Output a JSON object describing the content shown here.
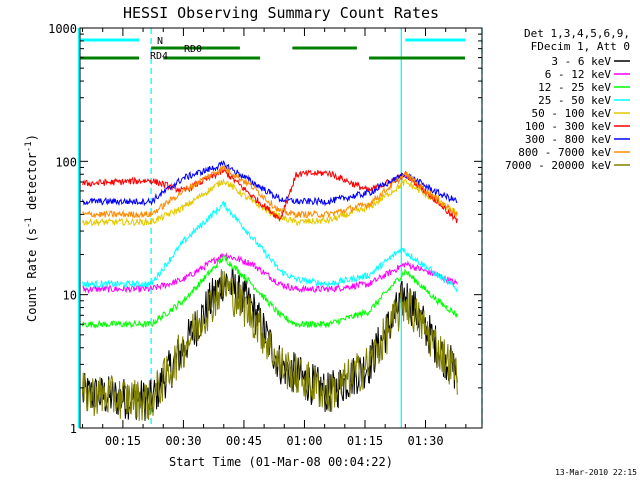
{
  "chart_data": {
    "type": "line",
    "title": "HESSI Observing Summary Count Rates",
    "xlabel": "Start Time (01-Mar-08 00:04:22)",
    "ylabel": "Count Rate (s⁻¹ detector⁻¹)",
    "ylabel_parts": {
      "prefix": "Count Rate (s",
      "exp1": "-1",
      "mid": " detector",
      "exp2": "-1",
      "suffix": ")"
    },
    "y_scale": "log",
    "ylim": [
      1,
      1000
    ],
    "xlim_minutes": [
      4.37,
      48.0
    ],
    "x_range_clock": [
      "00:04:22",
      "01:44:00"
    ],
    "y_ticks": [
      {
        "value": 1,
        "label": "1"
      },
      {
        "value": 10,
        "label": "10"
      },
      {
        "value": 100,
        "label": "100"
      },
      {
        "value": 1000,
        "label": "1000"
      }
    ],
    "x_ticks": [
      {
        "value": "00:15",
        "label": "00:15"
      },
      {
        "value": "00:30",
        "label": "00:30"
      },
      {
        "value": "00:45",
        "label": "00:45"
      },
      {
        "value": "01:00",
        "label": "01:00"
      },
      {
        "value": "01:15",
        "label": "01:15"
      },
      {
        "value": "01:30",
        "label": "01:30"
      }
    ],
    "legend_header": [
      "Det 1,3,4,5,6,9,",
      "FDecim 1, Att 0"
    ],
    "legend_placement": "right, outside plot",
    "series": [
      {
        "name": "3 - 6 keV",
        "color": "#000000",
        "points": [
          [
            "00:05",
            1.8
          ],
          [
            "00:22",
            1.6
          ],
          [
            "00:30",
            4
          ],
          [
            "00:40",
            13
          ],
          [
            "00:47",
            8
          ],
          [
            "00:54",
            3
          ],
          [
            "00:58",
            2.5
          ],
          [
            "01:06",
            1.8
          ],
          [
            "01:16",
            3
          ],
          [
            "01:25",
            10
          ],
          [
            "01:33",
            4
          ],
          [
            "01:38",
            2.5
          ]
        ]
      },
      {
        "name": "6 - 12 keV",
        "color": "#ff00ff",
        "points": [
          [
            "00:05",
            11
          ],
          [
            "00:22",
            11
          ],
          [
            "00:30",
            13
          ],
          [
            "00:40",
            20
          ],
          [
            "00:47",
            17
          ],
          [
            "00:54",
            12
          ],
          [
            "00:58",
            11
          ],
          [
            "01:06",
            11
          ],
          [
            "01:16",
            12
          ],
          [
            "01:25",
            17
          ],
          [
            "01:33",
            14
          ],
          [
            "01:38",
            12
          ]
        ]
      },
      {
        "name": "12 - 25 keV",
        "color": "#00ff00",
        "points": [
          [
            "00:05",
            6
          ],
          [
            "00:22",
            6
          ],
          [
            "00:30",
            9
          ],
          [
            "00:40",
            19
          ],
          [
            "00:47",
            12
          ],
          [
            "00:54",
            7
          ],
          [
            "00:58",
            6
          ],
          [
            "01:06",
            6
          ],
          [
            "01:16",
            7.5
          ],
          [
            "01:25",
            15
          ],
          [
            "01:33",
            9
          ],
          [
            "01:38",
            7
          ]
        ]
      },
      {
        "name": "25 - 50 keV",
        "color": "#00ffff",
        "points": [
          [
            "00:05",
            12
          ],
          [
            "00:22",
            12
          ],
          [
            "00:30",
            25
          ],
          [
            "00:40",
            48
          ],
          [
            "00:47",
            27
          ],
          [
            "00:54",
            15
          ],
          [
            "00:58",
            13
          ],
          [
            "01:06",
            12
          ],
          [
            "01:16",
            14
          ],
          [
            "01:24",
            22
          ],
          [
            "01:33",
            14
          ],
          [
            "01:38",
            11
          ]
        ]
      },
      {
        "name": "50 - 100 keV",
        "color": "#e6c800",
        "points": [
          [
            "00:05",
            35
          ],
          [
            "00:22",
            35
          ],
          [
            "00:30",
            45
          ],
          [
            "00:40",
            72
          ],
          [
            "00:47",
            50
          ],
          [
            "00:54",
            38
          ],
          [
            "00:58",
            35
          ],
          [
            "01:06",
            36
          ],
          [
            "01:16",
            45
          ],
          [
            "01:25",
            70
          ],
          [
            "01:33",
            50
          ],
          [
            "01:38",
            40
          ]
        ]
      },
      {
        "name": "100 - 300 keV",
        "color": "#ff0000",
        "points": [
          [
            "00:05",
            68
          ],
          [
            "00:22",
            72
          ],
          [
            "00:30",
            60
          ],
          [
            "00:40",
            85
          ],
          [
            "00:47",
            55
          ],
          [
            "00:54",
            37
          ],
          [
            "00:58",
            80
          ],
          [
            "01:06",
            82
          ],
          [
            "01:16",
            60
          ],
          [
            "01:25",
            80
          ],
          [
            "01:33",
            50
          ],
          [
            "01:38",
            35
          ]
        ]
      },
      {
        "name": "300 - 800 keV",
        "color": "#0000ff",
        "points": [
          [
            "00:05",
            50
          ],
          [
            "00:22",
            50
          ],
          [
            "00:30",
            75
          ],
          [
            "00:40",
            95
          ],
          [
            "00:47",
            70
          ],
          [
            "00:54",
            52
          ],
          [
            "00:58",
            50
          ],
          [
            "01:06",
            50
          ],
          [
            "01:16",
            58
          ],
          [
            "01:25",
            80
          ],
          [
            "01:33",
            58
          ],
          [
            "01:38",
            50
          ]
        ]
      },
      {
        "name": "800 - 7000 keV",
        "color": "#ff8c00",
        "points": [
          [
            "00:05",
            40
          ],
          [
            "00:22",
            40
          ],
          [
            "00:30",
            60
          ],
          [
            "00:40",
            90
          ],
          [
            "00:47",
            65
          ],
          [
            "00:54",
            42
          ],
          [
            "00:58",
            40
          ],
          [
            "01:06",
            40
          ],
          [
            "01:16",
            48
          ],
          [
            "01:25",
            80
          ],
          [
            "01:33",
            52
          ],
          [
            "01:38",
            40
          ]
        ]
      },
      {
        "name": "7000 - 20000 keV",
        "color": "#808000",
        "points": [
          [
            "00:05",
            1.8
          ],
          [
            "00:22",
            1.6
          ],
          [
            "00:30",
            4
          ],
          [
            "00:40",
            12
          ],
          [
            "00:47",
            7
          ],
          [
            "00:54",
            3
          ],
          [
            "00:58",
            2.5
          ],
          [
            "01:06",
            1.8
          ],
          [
            "01:16",
            3
          ],
          [
            "01:25",
            9
          ],
          [
            "01:33",
            4
          ],
          [
            "01:38",
            2.5
          ]
        ]
      }
    ],
    "flag_bars": [
      {
        "label": "N",
        "color": "#00ffff",
        "segments": [
          [
            "00:04",
            "00:19"
          ],
          [
            "01:25",
            "01:44"
          ]
        ]
      },
      {
        "label": "RD0",
        "color": "#008000",
        "segments": [
          [
            "00:22",
            "00:44"
          ],
          [
            "00:57",
            "01:13"
          ]
        ]
      },
      {
        "label": "RD4",
        "color": "#008000",
        "segments": [
          [
            "00:04",
            "00:19"
          ],
          [
            "00:25",
            "00:49"
          ],
          [
            "01:16",
            "01:41"
          ]
        ]
      }
    ],
    "vertical_markers": [
      {
        "time": "00:04",
        "style": "solid",
        "color": "#00ffff"
      },
      {
        "time": "00:22",
        "style": "dashed",
        "color": "#00ffff"
      },
      {
        "time": "01:24",
        "style": "solid",
        "color": "#00ffff"
      },
      {
        "time": "01:44",
        "style": "dashed",
        "color": "#00ffff"
      }
    ],
    "timestamp": "13-Mar-2010 22:15"
  }
}
